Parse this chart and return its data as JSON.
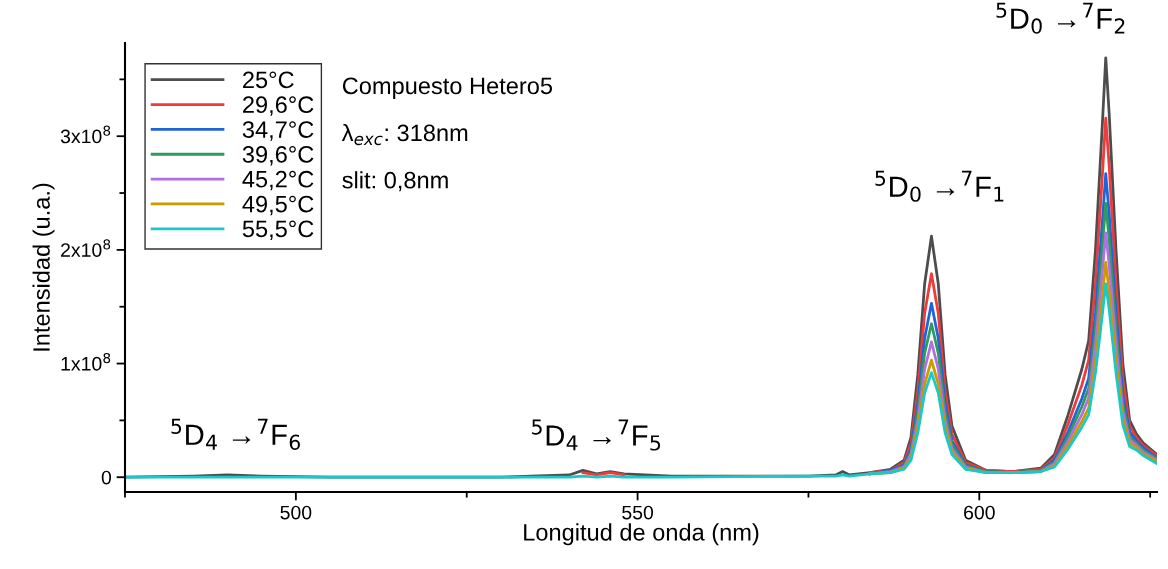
{
  "chart_data": {
    "type": "line",
    "xlabel": "Longitud de onda (nm)",
    "ylabel": "Intensidad (u.a.)",
    "x": [
      475,
      485,
      490,
      495,
      505,
      530,
      540,
      542,
      544,
      546,
      548,
      555,
      575,
      579,
      580,
      581,
      584,
      587,
      589,
      590,
      591,
      592,
      593,
      594,
      595,
      596,
      598,
      601,
      605,
      609,
      611,
      613,
      615,
      616,
      617,
      618,
      618.5,
      619,
      620,
      621,
      622,
      623,
      624,
      626
    ],
    "series": [
      {
        "name": "25°C",
        "color": "#4d4d4d",
        "values": [
          0,
          1000000.0,
          2000000.0,
          1000000.0,
          0,
          0,
          2000000.0,
          6000000.0,
          3000000.0,
          5000000.0,
          3000000.0,
          1000000.0,
          1000000.0,
          2000000.0,
          5000000.0,
          2000000.0,
          4000000.0,
          7000000.0,
          15000000.0,
          35000000.0,
          90000000.0,
          170000000.0,
          212000000.0,
          170000000.0,
          90000000.0,
          45000000.0,
          15000000.0,
          6000000.0,
          5000000.0,
          8000000.0,
          20000000.0,
          55000000.0,
          95000000.0,
          120000000.0,
          200000000.0,
          310000000.0,
          369000000.0,
          320000000.0,
          200000000.0,
          100000000.0,
          50000000.0,
          38000000.0,
          30000000.0,
          20000000.0
        ]
      },
      {
        "name": "29,6°C",
        "color": "#ee3b3b",
        "values": [
          null,
          null,
          null,
          null,
          null,
          null,
          null,
          4000000.0,
          2000000.0,
          4000000.0,
          2000000.0,
          null,
          null,
          null,
          null,
          null,
          4000000.0,
          6000000.0,
          13000000.0,
          30000000.0,
          76000000.0,
          144000000.0,
          179000000.0,
          144000000.0,
          76000000.0,
          38000000.0,
          13000000.0,
          6000000.0,
          5000000.0,
          7000000.0,
          17000000.0,
          47000000.0,
          81000000.0,
          103000000.0,
          171000000.0,
          265000000.0,
          316000000.0,
          274000000.0,
          171000000.0,
          86000000.0,
          45000000.0,
          35000000.0,
          28000000.0,
          19000000.0
        ]
      },
      {
        "name": "34,7°C",
        "color": "#1f64d8",
        "values": [
          null,
          null,
          null,
          null,
          null,
          null,
          null,
          null,
          null,
          null,
          null,
          null,
          null,
          null,
          null,
          null,
          3000000.0,
          6000000.0,
          11000000.0,
          25000000.0,
          65000000.0,
          122000000.0,
          153000000.0,
          122000000.0,
          65000000.0,
          32000000.0,
          11000000.0,
          5000000.0,
          4000000.0,
          6000000.0,
          15000000.0,
          40000000.0,
          69000000.0,
          87000000.0,
          145000000.0,
          224000000.0,
          267000000.0,
          232000000.0,
          145000000.0,
          72000000.0,
          40000000.0,
          32000000.0,
          26000000.0,
          17000000.0
        ]
      },
      {
        "name": "39,6°C",
        "color": "#2e9a5e",
        "values": [
          null,
          null,
          null,
          null,
          null,
          null,
          null,
          null,
          null,
          null,
          null,
          null,
          null,
          null,
          null,
          null,
          3000000.0,
          5000000.0,
          10000000.0,
          22000000.0,
          58000000.0,
          109000000.0,
          135000000.0,
          109000000.0,
          58000000.0,
          29000000.0,
          10000000.0,
          5000000.0,
          4000000.0,
          6000000.0,
          13000000.0,
          36000000.0,
          62000000.0,
          78000000.0,
          131000000.0,
          202000000.0,
          241000000.0,
          209000000.0,
          131000000.0,
          65000000.0,
          36000000.0,
          30000000.0,
          24000000.0,
          16000000.0
        ]
      },
      {
        "name": "45,2°C",
        "color": "#b070e0",
        "values": [
          null,
          null,
          null,
          null,
          null,
          null,
          null,
          null,
          null,
          null,
          null,
          null,
          null,
          null,
          null,
          null,
          3000000.0,
          5000000.0,
          9000000.0,
          20000000.0,
          50000000.0,
          95000000.0,
          119000000.0,
          95000000.0,
          50000000.0,
          25000000.0,
          9000000.0,
          4000000.0,
          4000000.0,
          5000000.0,
          12000000.0,
          32000000.0,
          55000000.0,
          70000000.0,
          117000000.0,
          181000000.0,
          215000000.0,
          187000000.0,
          117000000.0,
          58000000.0,
          33000000.0,
          28000000.0,
          22000000.0,
          15000000.0
        ]
      },
      {
        "name": "49,5°C",
        "color": "#cc9900",
        "values": [
          null,
          null,
          null,
          null,
          null,
          null,
          null,
          null,
          null,
          null,
          null,
          null,
          null,
          null,
          null,
          null,
          3000000.0,
          4000000.0,
          8000000.0,
          17000000.0,
          44000000.0,
          82000000.0,
          103000000.0,
          82000000.0,
          44000000.0,
          22000000.0,
          8000000.0,
          4000000.0,
          4000000.0,
          5000000.0,
          10000000.0,
          28000000.0,
          49000000.0,
          61000000.0,
          102000000.0,
          159000000.0,
          189000000.0,
          164000000.0,
          102000000.0,
          51000000.0,
          30000000.0,
          26000000.0,
          20000000.0,
          14000000.0
        ]
      },
      {
        "name": "55,5°C",
        "color": "#1ac8c8",
        "values": [
          0,
          0,
          0,
          0,
          0,
          0,
          0,
          1000000.0,
          0,
          1000000.0,
          0,
          0,
          1000000.0,
          1000000.0,
          2000000.0,
          1000000.0,
          3000000.0,
          4000000.0,
          7000000.0,
          15000000.0,
          39000000.0,
          74000000.0,
          92000000.0,
          74000000.0,
          39000000.0,
          20000000.0,
          7000000.0,
          4000000.0,
          4000000.0,
          5000000.0,
          9000000.0,
          25000000.0,
          44000000.0,
          55000000.0,
          92000000.0,
          143000000.0,
          170000000.0,
          148000000.0,
          92000000.0,
          46000000.0,
          27000000.0,
          24000000.0,
          19000000.0,
          12000000.0
        ]
      }
    ],
    "xlim": [
      475,
      626
    ],
    "xticks": [
      {
        "value": 475,
        "label": null
      },
      500,
      {
        "value": 525,
        "label": null
      },
      550,
      {
        "value": 575,
        "label": null
      },
      600,
      {
        "value": 625,
        "label": null
      }
    ],
    "ylim": [
      -13000000.0,
      382000000.0
    ],
    "yticks": [
      0,
      {
        "value": 50000000.0,
        "label": null
      },
      {
        "value": 100000000.0,
        "label": "1x10$^{8}$"
      },
      {
        "value": 150000000.0,
        "label": null
      },
      {
        "value": 200000000.0,
        "label": "2x10$^{8}$"
      },
      {
        "value": 250000000.0,
        "label": null
      },
      {
        "value": 300000000.0,
        "label": "3x10$^{8}$"
      },
      {
        "value": 350000000.0,
        "label": null
      }
    ],
    "annotations": [
      "Compuesto Hetero5",
      "λ$_{exc}$: 318nm",
      "slit: 0,8nm",
      {
        "text": "$^{5}$D$_{4}$ →$^{7}$F$_{6}$",
        "x": 490,
        "y": 2000000.0
      },
      {
        "text": "$^{5}$D$_{4}$ →$^{7}$F$_{5}$",
        "x": 542,
        "y": 6000000.0
      },
      {
        "text": "$^{5}$D$_{0}$ →$^{7}$F$_{1}$",
        "x": 593,
        "y": 212000000.0
      },
      {
        "text": "$^{5}$D$_{0}$ →$^{7}$F$_{2}$",
        "x": 618.5,
        "y": 369000000.0
      }
    ],
    "legend": "top left",
    "grid": false,
    "line_style": "solid",
    "marker": "none"
  }
}
